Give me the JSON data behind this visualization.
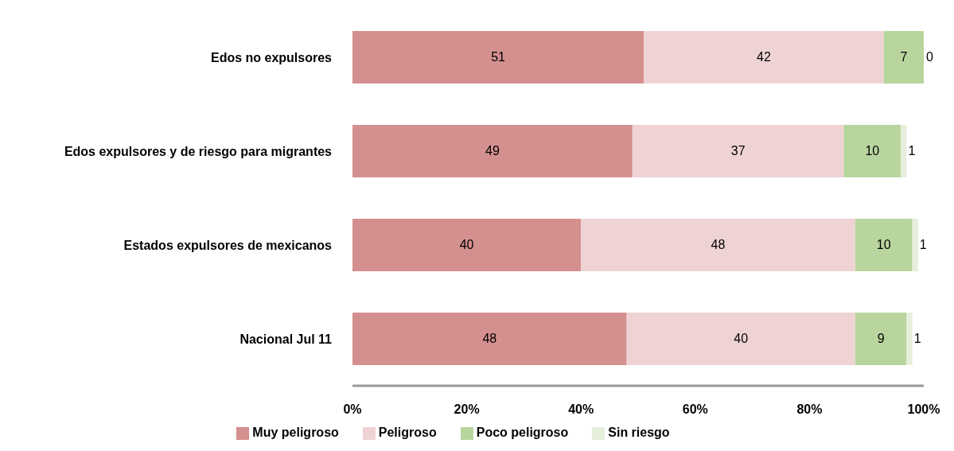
{
  "chart_data": {
    "type": "bar",
    "orientation": "horizontal",
    "stacked": true,
    "categories": [
      "Edos no expulsores",
      "Edos expulsores y de riesgo para migrantes",
      "Estados expulsores de mexicanos",
      "Nacional Jul 11"
    ],
    "series": [
      {
        "name": "Muy peligroso",
        "color": "#d48f8f",
        "values": [
          51,
          49,
          40,
          48
        ]
      },
      {
        "name": "Peligroso",
        "color": "#efd3d4",
        "values": [
          42,
          37,
          48,
          40
        ]
      },
      {
        "name": "Poco peligroso",
        "color": "#b8d59e",
        "values": [
          7,
          10,
          10,
          9
        ]
      },
      {
        "name": "Sin riesgo",
        "color": "#e6efdb",
        "values": [
          0,
          1,
          1,
          1
        ]
      }
    ],
    "xlim": [
      0,
      100
    ],
    "xticks": [
      {
        "value": 0,
        "label": "0%"
      },
      {
        "value": 20,
        "label": "20%"
      },
      {
        "value": 40,
        "label": "40%"
      },
      {
        "value": 60,
        "label": "60%"
      },
      {
        "value": 80,
        "label": "80%"
      },
      {
        "value": 100,
        "label": "100%"
      }
    ],
    "data_labels": true,
    "grid": false,
    "legend": "bottom"
  }
}
